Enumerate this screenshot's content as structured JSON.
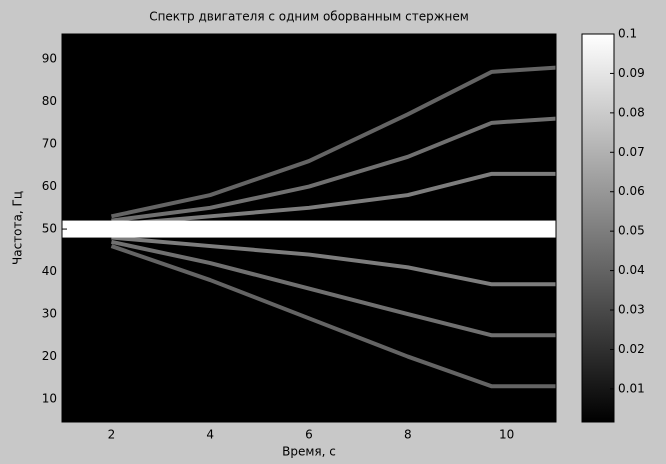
{
  "chart_data": {
    "type": "spectrogram",
    "title": "Спектр двигателя с одним оборванным стержнем",
    "xlabel": "Время, с",
    "ylabel": "Частота, Гц",
    "xlim": [
      1,
      11
    ],
    "ylim": [
      4.6,
      95.9
    ],
    "xticks": [
      2,
      4,
      6,
      8,
      10
    ],
    "yticks": [
      10,
      20,
      30,
      40,
      50,
      60,
      70,
      80,
      90
    ],
    "clim": [
      0.0016,
      0.1
    ],
    "cticks": [
      0.01,
      0.02,
      0.03,
      0.04,
      0.05,
      0.06,
      0.07,
      0.08,
      0.09,
      0.1
    ],
    "bands": [
      {
        "y": [
          48,
          52
        ],
        "level": 0.1
      }
    ],
    "ridges": [
      {
        "x": [
          2,
          4,
          6,
          8,
          9.7,
          11
        ],
        "y": [
          51,
          53,
          55,
          58,
          63,
          63
        ],
        "level": 0.05
      },
      {
        "x": [
          2,
          4,
          6,
          8,
          9.7,
          11
        ],
        "y": [
          52,
          55,
          60,
          67,
          75,
          76
        ],
        "level": 0.045
      },
      {
        "x": [
          2,
          4,
          6,
          8,
          9.7,
          11
        ],
        "y": [
          53,
          58,
          66,
          77,
          87,
          88
        ],
        "level": 0.04
      },
      {
        "x": [
          2,
          4,
          6,
          8,
          9.7,
          11
        ],
        "y": [
          48,
          46,
          44,
          41,
          37,
          37
        ],
        "level": 0.05
      },
      {
        "x": [
          2,
          4,
          6,
          8,
          9.7,
          11
        ],
        "y": [
          47,
          42,
          36,
          30,
          25,
          25
        ],
        "level": 0.045
      },
      {
        "x": [
          2,
          4,
          6,
          8,
          9.7,
          11
        ],
        "y": [
          46,
          38,
          29,
          20,
          13,
          13
        ],
        "level": 0.04
      }
    ]
  }
}
